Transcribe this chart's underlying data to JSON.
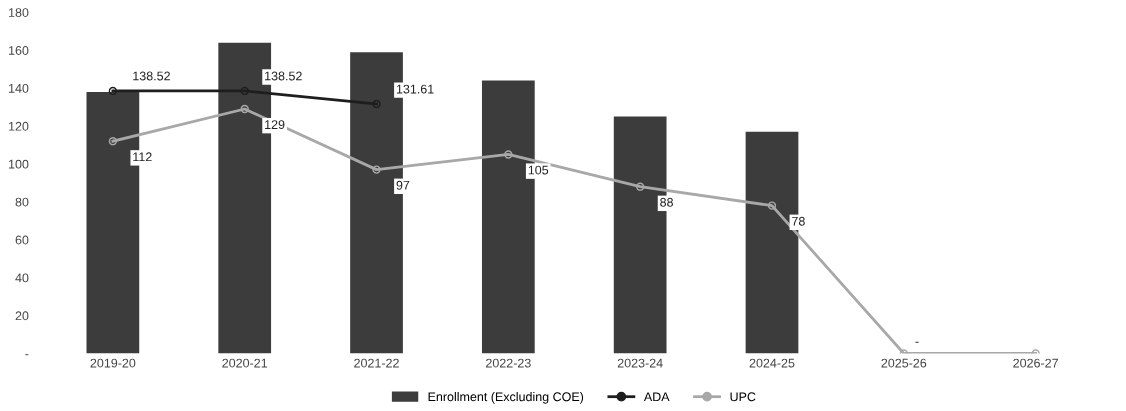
{
  "chart_data": {
    "type": "bar",
    "categories": [
      "2019-20",
      "2020-21",
      "2021-22",
      "2022-23",
      "2023-24",
      "2024-25",
      "2025-26",
      "2026-27"
    ],
    "series": [
      {
        "name": "Enrollment (Excluding COE)",
        "color": "#3c3c3c",
        "values": [
          138,
          164,
          159,
          144,
          125,
          117,
          null,
          null
        ]
      },
      {
        "name": "ADA",
        "type": "line",
        "color": "#1e1e1e",
        "marker": "circle",
        "values": [
          138.52,
          138.52,
          131.61,
          null,
          null,
          null,
          null,
          null
        ],
        "value_labels": [
          "138.52",
          "138.52",
          "131.61",
          null,
          null,
          null,
          null,
          null
        ]
      },
      {
        "name": "UPC",
        "type": "line",
        "color": "#a8a8a8",
        "marker": "circle",
        "values": [
          112,
          129,
          97,
          105,
          88,
          78,
          0,
          0
        ],
        "value_labels": [
          "112",
          "129",
          "97",
          "105",
          "88",
          "78",
          "-",
          null
        ]
      }
    ],
    "ylim": [
      0,
      180
    ],
    "yticks": [
      {
        "value": 0,
        "label": "-"
      },
      20,
      40,
      60,
      80,
      100,
      120,
      140,
      160,
      180
    ],
    "grid": false,
    "legend": "bottom"
  }
}
